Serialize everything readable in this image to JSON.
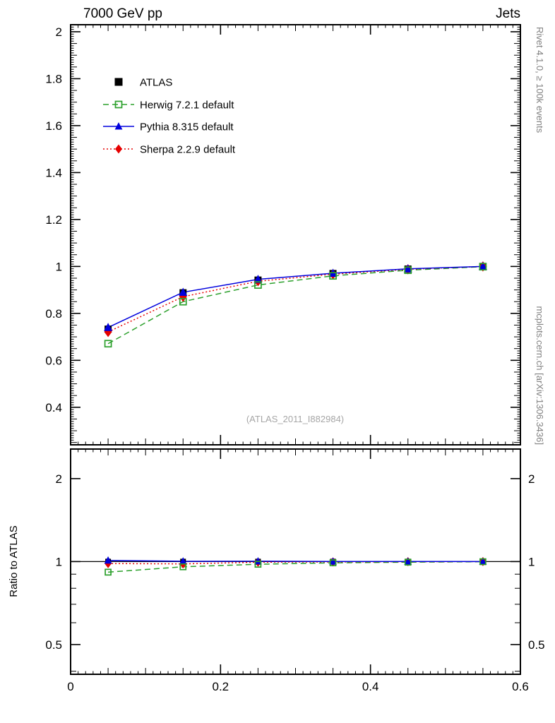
{
  "header": {
    "title_left": "7000 GeV pp",
    "title_right": "Jets"
  },
  "side": {
    "top": "Rivet 4.1.0, ≥ 100k events",
    "bottom": "mcplots.cern.ch [arXiv:1306.3436]"
  },
  "watermark": "(ATLAS_2011_I882984)",
  "chart_data": {
    "type": "line",
    "x": [
      0.05,
      0.15,
      0.25,
      0.35,
      0.45,
      0.55
    ],
    "xlim": [
      0,
      0.6
    ],
    "xticks": [
      0,
      0.2,
      0.4,
      0.6
    ],
    "main_panel": {
      "scale": "linear",
      "ylim": [
        0.24,
        2.03
      ],
      "yticks": [
        0.4,
        0.6,
        0.8,
        1,
        1.2,
        1.4,
        1.6,
        1.8,
        2
      ]
    },
    "ratio_panel": {
      "scale": "log",
      "ylim": [
        0.39,
        2.56
      ],
      "yticks": [
        0.5,
        1,
        2
      ],
      "minor_ticks": [
        0.4,
        0.6,
        0.7,
        0.8,
        0.9
      ],
      "ylabel": "Ratio to ATLAS",
      "reference_line": 1
    },
    "legend_position": "top-left",
    "series": [
      {
        "name": "ATLAS",
        "color": "#000000",
        "marker": "square",
        "line": "none",
        "values": [
          0.733,
          0.888,
          0.942,
          0.97,
          0.989,
          1.0
        ],
        "errors": [
          0.012,
          0.008,
          0.006,
          0.004,
          0.003,
          0.003
        ]
      },
      {
        "name": "Herwig 7.2.1 default",
        "color": "#2ca02c",
        "marker": "square-open",
        "line": "dashed",
        "values": [
          0.671,
          0.85,
          0.921,
          0.96,
          0.984,
          0.999
        ]
      },
      {
        "name": "Pythia 8.315 default",
        "color": "#0000dd",
        "marker": "triangle",
        "line": "solid",
        "values": [
          0.74,
          0.89,
          0.945,
          0.971,
          0.99,
          1.0
        ]
      },
      {
        "name": "Sherpa 2.2.9 default",
        "color": "#e60000",
        "marker": "diamond",
        "line": "dotted",
        "values": [
          0.721,
          0.871,
          0.937,
          0.967,
          0.988,
          1.0
        ]
      }
    ]
  }
}
